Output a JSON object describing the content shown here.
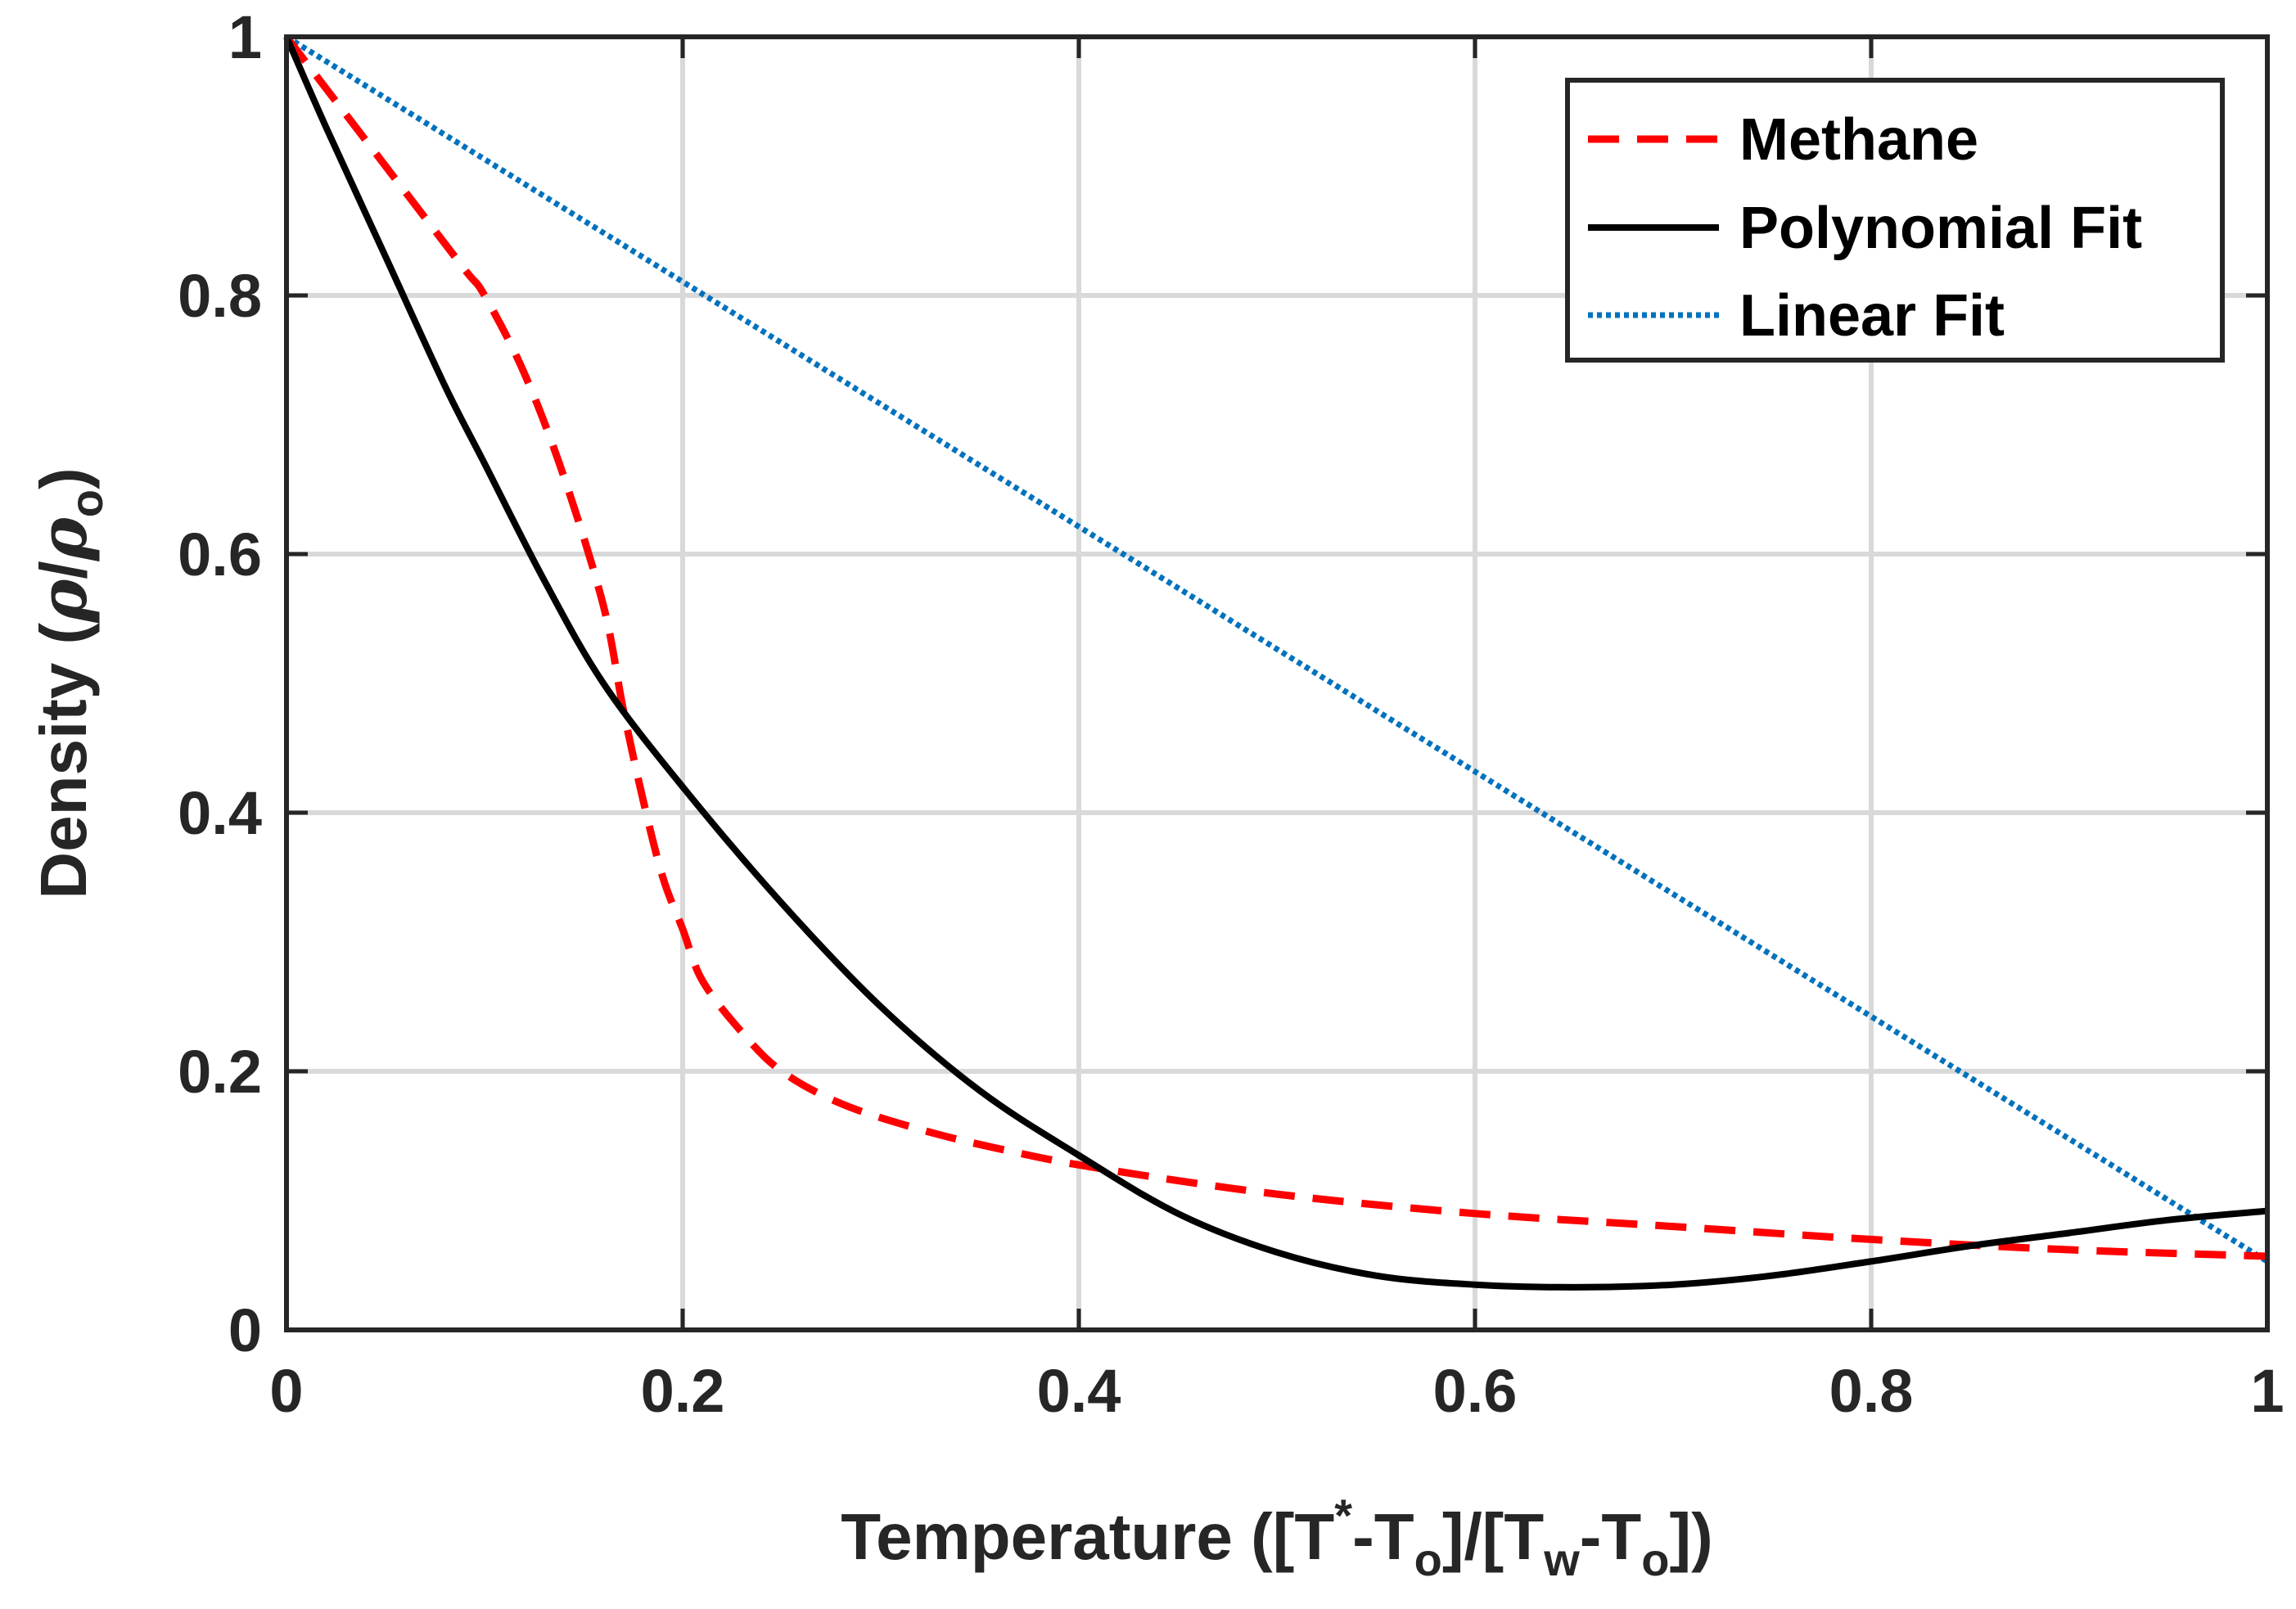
{
  "chart_data": {
    "type": "line",
    "title": "",
    "xlabel": {
      "main": "Temperature ([T",
      "sup": "*",
      "dash1": "-T",
      "sub1": "o",
      "mid": "]/[T",
      "sub2": "w",
      "dash2": "-T",
      "sub3": "o",
      "end": "])"
    },
    "ylabel": {
      "main": "Density (",
      "rho1": "ρ",
      "slash": "/",
      "rho2": "ρ",
      "sub": "o",
      "end": ")"
    },
    "xlim": [
      0,
      1
    ],
    "ylim": [
      0,
      1
    ],
    "xticks": [
      0,
      0.2,
      0.4,
      0.6,
      0.8,
      1
    ],
    "yticks": [
      0,
      0.2,
      0.4,
      0.6,
      0.8,
      1
    ],
    "xtick_labels": [
      "0",
      "0.2",
      "0.4",
      "0.6",
      "0.8",
      "1"
    ],
    "ytick_labels": [
      "0",
      "0.2",
      "0.4",
      "0.6",
      "0.8",
      "1"
    ],
    "grid": true,
    "legend_position": "top-right",
    "series": [
      {
        "name": "Methane",
        "color": "#ff0000",
        "style": "dashed",
        "x": [
          0,
          0.03,
          0.06,
          0.09,
          0.1,
          0.12,
          0.14,
          0.16,
          0.17,
          0.18,
          0.19,
          0.2,
          0.21,
          0.23,
          0.25,
          0.28,
          0.32,
          0.36,
          0.41,
          0.5,
          0.6,
          0.7,
          0.8,
          0.9,
          1.0
        ],
        "y": [
          1.0,
          0.94,
          0.88,
          0.82,
          0.8,
          0.74,
          0.66,
          0.56,
          0.48,
          0.41,
          0.35,
          0.31,
          0.27,
          0.23,
          0.2,
          0.175,
          0.155,
          0.14,
          0.125,
          0.105,
          0.09,
          0.08,
          0.07,
          0.062,
          0.057
        ]
      },
      {
        "name": "Polynomial Fit",
        "color": "#000000",
        "style": "solid",
        "x": [
          0,
          0.02,
          0.05,
          0.08,
          0.1,
          0.13,
          0.16,
          0.2,
          0.25,
          0.3,
          0.35,
          0.4,
          0.45,
          0.5,
          0.55,
          0.6,
          0.65,
          0.7,
          0.75,
          0.8,
          0.85,
          0.9,
          0.95,
          1.0
        ],
        "y": [
          1.0,
          0.93,
          0.83,
          0.73,
          0.67,
          0.58,
          0.5,
          0.42,
          0.33,
          0.25,
          0.185,
          0.135,
          0.09,
          0.06,
          0.042,
          0.035,
          0.033,
          0.035,
          0.042,
          0.053,
          0.065,
          0.075,
          0.085,
          0.092
        ]
      },
      {
        "name": "Linear Fit",
        "color": "#0072bd",
        "style": "dotted",
        "x": [
          0,
          1.0
        ],
        "y": [
          1.0,
          0.053
        ]
      }
    ]
  }
}
